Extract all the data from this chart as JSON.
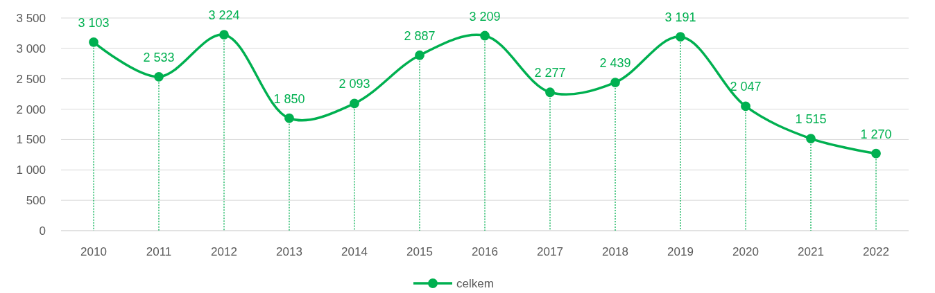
{
  "chart_data": {
    "type": "line",
    "categories": [
      "2010",
      "2011",
      "2012",
      "2013",
      "2014",
      "2015",
      "2016",
      "2017",
      "2018",
      "2019",
      "2020",
      "2021",
      "2022"
    ],
    "series": [
      {
        "name": "celkem",
        "color": "#00b050",
        "values": [
          3103,
          2533,
          3224,
          1850,
          2093,
          2887,
          3209,
          2277,
          2439,
          3191,
          2047,
          1515,
          1270
        ],
        "value_labels": [
          "3 103",
          "2 533",
          "3 224",
          "1 850",
          "2 093",
          "2 887",
          "3 209",
          "2 277",
          "2 439",
          "3 191",
          "2 047",
          "1 515",
          "1 270"
        ]
      }
    ],
    "ylim": [
      0,
      3500
    ],
    "yticks": [
      0,
      500,
      {
        "value": 1000,
        "label": "1 000"
      },
      {
        "value": 1500,
        "label": "1 500"
      },
      {
        "value": 2000,
        "label": "2 000"
      },
      {
        "value": 2500,
        "label": "2 500"
      },
      {
        "value": 3000,
        "label": "3 000"
      },
      {
        "value": 3500,
        "label": "3 500"
      }
    ],
    "grid": true,
    "legend": "bottom",
    "marker": "circle",
    "line_style": "solid"
  }
}
